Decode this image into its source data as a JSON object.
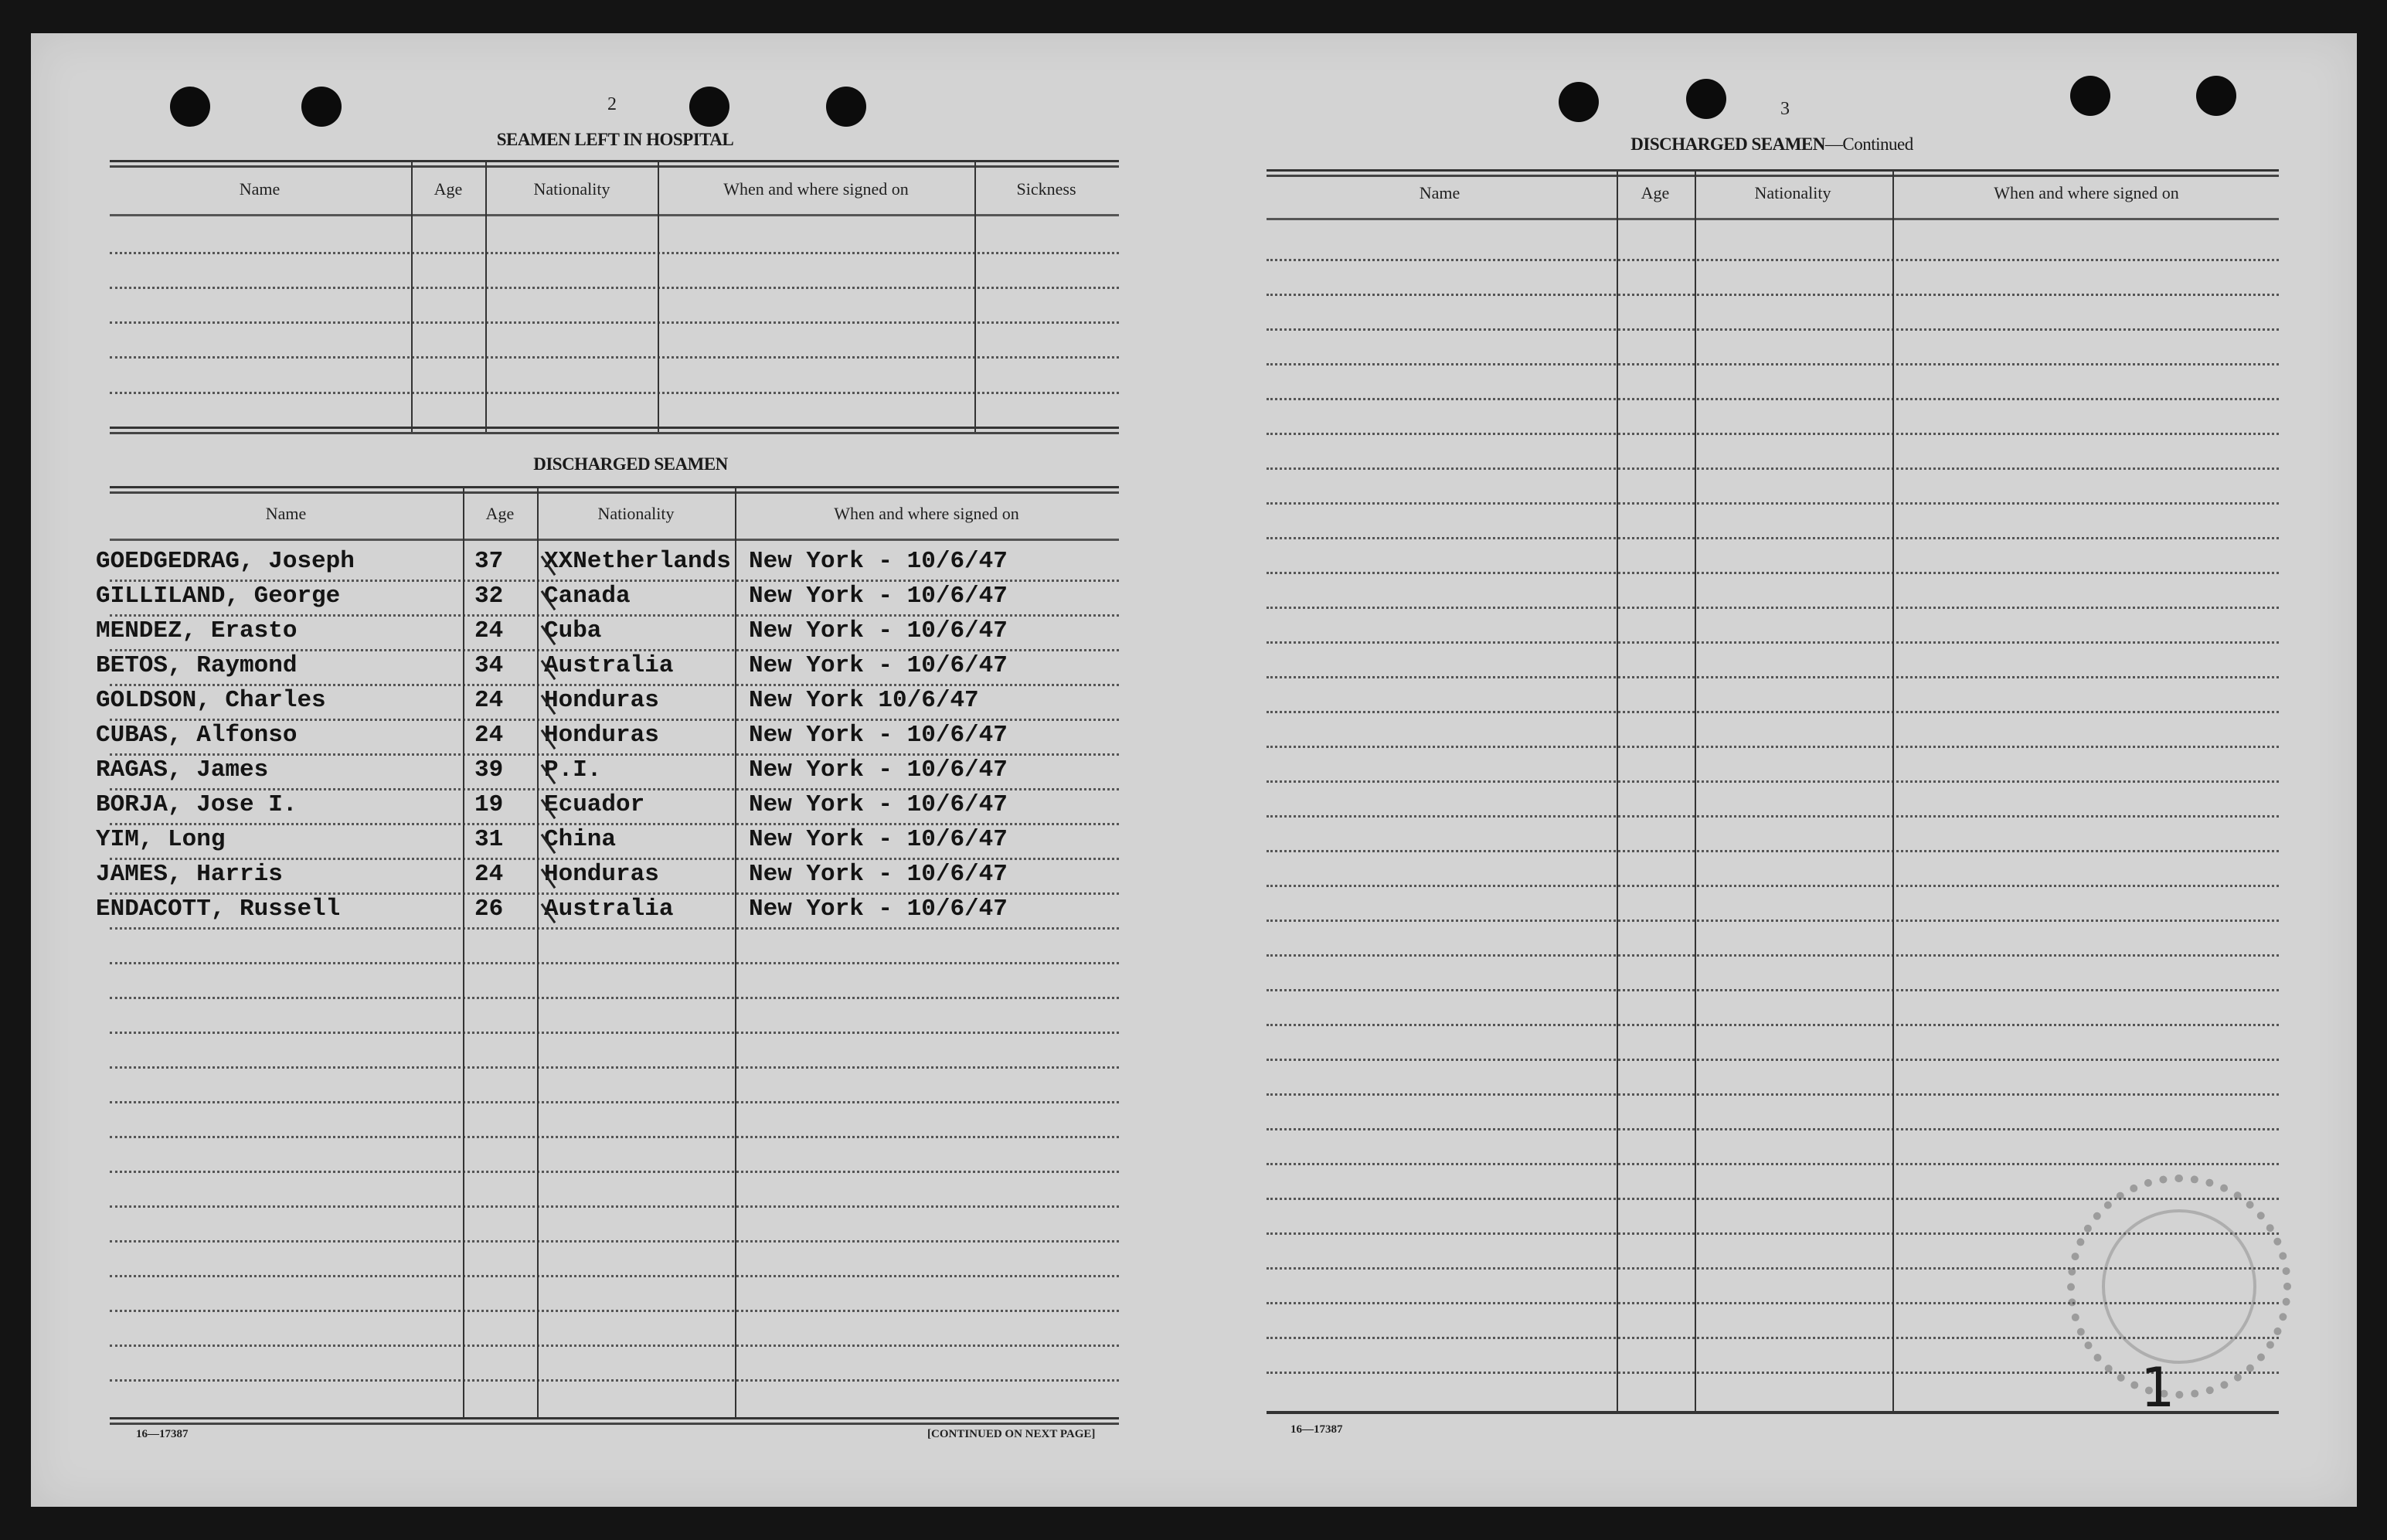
{
  "left_page": {
    "page_number": "2",
    "hospital_section": {
      "title": "SEAMEN LEFT IN HOSPITAL",
      "columns": [
        "Name",
        "Age",
        "Nationality",
        "When and where signed on",
        "Sickness"
      ]
    },
    "discharged_section": {
      "title": "DISCHARGED SEAMEN",
      "columns": [
        "Name",
        "Age",
        "Nationality",
        "When and where signed on"
      ],
      "rows": [
        {
          "name": "GOEDGEDRAG, Joseph",
          "age": "37",
          "nationality": "XXNetherlands",
          "signed_on": "New York - 10/6/47"
        },
        {
          "name": "GILLILAND, George",
          "age": "32",
          "nationality": "Canada",
          "signed_on": "New York - 10/6/47"
        },
        {
          "name": "MENDEZ, Erasto",
          "age": "24",
          "nationality": "Cuba",
          "signed_on": "New York - 10/6/47"
        },
        {
          "name": "BETOS, Raymond",
          "age": "34",
          "nationality": "Australia",
          "signed_on": "New York - 10/6/47"
        },
        {
          "name": "GOLDSON, Charles",
          "age": "24",
          "nationality": "Honduras",
          "signed_on": "New York 10/6/47"
        },
        {
          "name": "CUBAS, Alfonso",
          "age": "24",
          "nationality": "Honduras",
          "signed_on": "New York - 10/6/47"
        },
        {
          "name": "RAGAS, James",
          "age": "39",
          "nationality": "P.I.",
          "signed_on": "New York - 10/6/47"
        },
        {
          "name": "BORJA, Jose I.",
          "age": "19",
          "nationality": "Ecuador",
          "signed_on": "New York - 10/6/47"
        },
        {
          "name": "YIM, Long",
          "age": "31",
          "nationality": "China",
          "signed_on": "New York - 10/6/47"
        },
        {
          "name": "JAMES, Harris",
          "age": "24",
          "nationality": "Honduras",
          "signed_on": "New York - 10/6/47"
        },
        {
          "name": "ENDACOTT, Russell",
          "age": "26",
          "nationality": "Australia",
          "signed_on": "New York - 10/6/47"
        }
      ]
    },
    "form_number": "16—17387",
    "continued_note": "[CONTINUED ON NEXT PAGE]"
  },
  "right_page": {
    "page_number": "3",
    "title_main": "DISCHARGED SEAMEN",
    "title_suffix": "—Continued",
    "columns": [
      "Name",
      "Age",
      "Nationality",
      "When and where signed on"
    ],
    "form_number": "16—17387",
    "handwritten_mark": "1"
  }
}
